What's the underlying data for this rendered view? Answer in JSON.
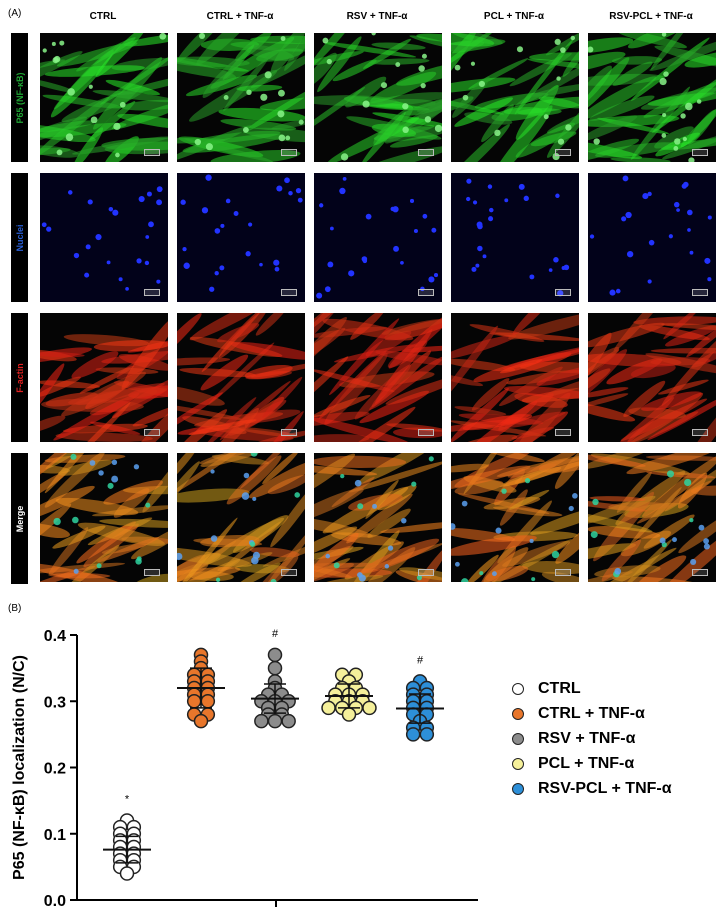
{
  "figure": {
    "panel_a_label": "(A)",
    "panel_b_label": "(B)",
    "columns": [
      "CTRL",
      "CTRL + TNF-α",
      "RSV + TNF-α",
      "PCL + TNF-α",
      "RSV-PCL + TNF-α"
    ],
    "rows": [
      {
        "label": "P65 (NF-κB)",
        "label_color": "#1fa534",
        "channel": "green"
      },
      {
        "label": "Nuclei",
        "label_color": "#2a5fd6",
        "channel": "blue"
      },
      {
        "label": "F-actin",
        "label_color": "#e02020",
        "channel": "red"
      },
      {
        "label": "Merge",
        "label_color": "#ffffff",
        "channel": "merge"
      }
    ]
  },
  "chart_data": {
    "type": "scatter",
    "ylabel": "P65 (NF-κB) localization (N/C)",
    "ylim": [
      0.0,
      0.4
    ],
    "yticks": [
      "0.0",
      "0.1",
      "0.2",
      "0.3",
      "0.4"
    ],
    "series": [
      {
        "name": "CTRL",
        "color": "#ffffff",
        "values": [
          0.12,
          0.11,
          0.11,
          0.1,
          0.1,
          0.09,
          0.09,
          0.08,
          0.08,
          0.07,
          0.07,
          0.06,
          0.06,
          0.05,
          0.05,
          0.04
        ],
        "mean": 0.076,
        "sd": 0.02,
        "annotation": "*"
      },
      {
        "name": "CTRL + TNF-α",
        "color": "#e8762b",
        "values": [
          0.37,
          0.36,
          0.35,
          0.34,
          0.34,
          0.33,
          0.33,
          0.32,
          0.32,
          0.31,
          0.31,
          0.3,
          0.3,
          0.28,
          0.28,
          0.27
        ],
        "mean": 0.32,
        "sd": 0.03,
        "annotation": ""
      },
      {
        "name": "RSV + TNF-α",
        "color": "#8c8c8c",
        "values": [
          0.37,
          0.35,
          0.33,
          0.32,
          0.31,
          0.31,
          0.3,
          0.3,
          0.3,
          0.29,
          0.29,
          0.28,
          0.28,
          0.27,
          0.27,
          0.27
        ],
        "mean": 0.304,
        "sd": 0.022,
        "annotation": "#"
      },
      {
        "name": "PCL + TNF-α",
        "color": "#f5f09a",
        "values": [
          0.34,
          0.34,
          0.33,
          0.32,
          0.32,
          0.31,
          0.31,
          0.31,
          0.3,
          0.3,
          0.3,
          0.29,
          0.29,
          0.29,
          0.29,
          0.28
        ],
        "mean": 0.308,
        "sd": 0.018,
        "annotation": ""
      },
      {
        "name": "RSV-PCL + TNF-α",
        "color": "#2d8fd8",
        "values": [
          0.33,
          0.32,
          0.32,
          0.31,
          0.31,
          0.3,
          0.3,
          0.29,
          0.29,
          0.28,
          0.28,
          0.27,
          0.26,
          0.26,
          0.25,
          0.25
        ],
        "mean": 0.289,
        "sd": 0.022,
        "annotation": "#"
      }
    ]
  }
}
